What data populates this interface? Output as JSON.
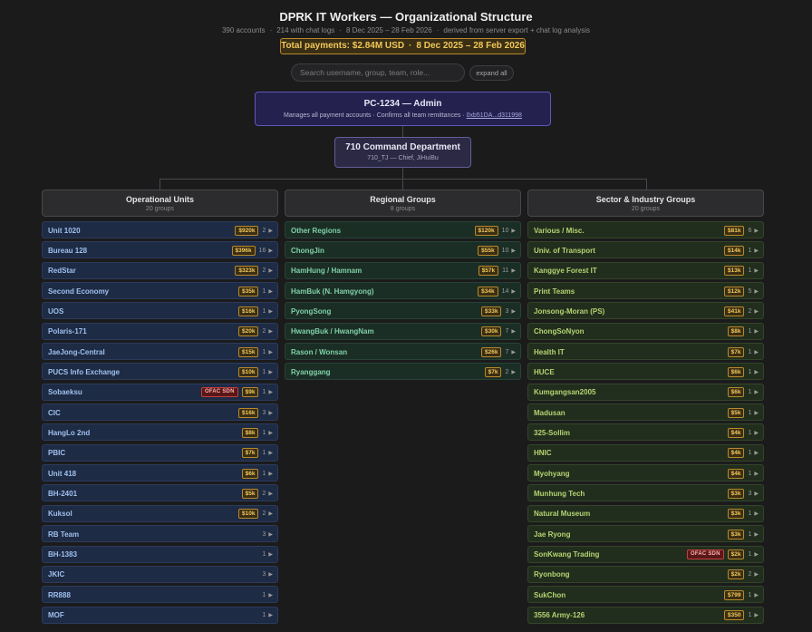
{
  "header": {
    "title": "DPRK IT Workers — Organizational Structure",
    "subtitle_accounts": "390 accounts",
    "subtitle_chatlogs": "214 with chat logs",
    "subtitle_range": "8 Dec 2025 – 28 Feb 2026",
    "subtitle_source": "derived from server export + chat log analysis",
    "total_payments": "Total payments: $2.84M USD",
    "total_range": "8 Dec 2025 – 28 Feb 2026"
  },
  "search": {
    "placeholder": "Search username, group, team, role..."
  },
  "expand_label": "expand all",
  "admin": {
    "name": "PC-1234 — Admin",
    "desc": "Manages all payment accounts · Confirms all team remittances ·",
    "address": "0xb51DA...d311998"
  },
  "dept": {
    "name": "710 Command Department",
    "desc": "710_TJ — Chief, JiHuiBu"
  },
  "colors": {
    "ops_accent": "#9fc0ee",
    "regional_accent": "#7fd0a6",
    "sector_accent": "#b3d472",
    "payment_badge": "#f2c85a",
    "ofac_badge": "#c04040"
  },
  "columns": {
    "ops": {
      "title": "Operational Units",
      "count": "20 groups",
      "items": [
        {
          "name": "Unit 1020",
          "pay": "$920k",
          "count": "2"
        },
        {
          "name": "Bureau 128",
          "pay": "$396k",
          "count": "16"
        },
        {
          "name": "RedStar",
          "pay": "$323k",
          "count": "2"
        },
        {
          "name": "Second Economy",
          "pay": "$35k",
          "count": "1"
        },
        {
          "name": "UOS",
          "pay": "$16k",
          "count": "1"
        },
        {
          "name": "Polaris-171",
          "pay": "$20k",
          "count": "2"
        },
        {
          "name": "JaeJong-Central",
          "pay": "$15k",
          "count": "1"
        },
        {
          "name": "PUCS Info Exchange",
          "pay": "$10k",
          "count": "1"
        },
        {
          "name": "Sobaeksu",
          "ofac": "OFAC SDN",
          "pay": "$9k",
          "count": "1"
        },
        {
          "name": "CIC",
          "pay": "$16k",
          "count": "3"
        },
        {
          "name": "HangLo 2nd",
          "pay": "$8k",
          "count": "1"
        },
        {
          "name": "PBIC",
          "pay": "$7k",
          "count": "1"
        },
        {
          "name": "Unit 418",
          "pay": "$6k",
          "count": "1"
        },
        {
          "name": "BH-2401",
          "pay": "$5k",
          "count": "2"
        },
        {
          "name": "Kuksol",
          "pay": "$10k",
          "count": "2"
        },
        {
          "name": "RB Team",
          "count": "3"
        },
        {
          "name": "BH-1383",
          "count": "1"
        },
        {
          "name": "JKIC",
          "count": "3"
        },
        {
          "name": "RR888",
          "count": "1"
        },
        {
          "name": "MOF",
          "count": "1"
        }
      ]
    },
    "regional": {
      "title": "Regional Groups",
      "count": "8 groups",
      "items": [
        {
          "name": "Other Regions",
          "pay": "$120k",
          "count": "10"
        },
        {
          "name": "ChongJin",
          "pay": "$55k",
          "count": "10"
        },
        {
          "name": "HamHung / Hamnam",
          "pay": "$57k",
          "count": "11"
        },
        {
          "name": "HamBuk (N. Hamgyong)",
          "pay": "$34k",
          "count": "14"
        },
        {
          "name": "PyongSong",
          "pay": "$33k",
          "count": "3"
        },
        {
          "name": "HwangBuk / HwangNam",
          "pay": "$30k",
          "count": "7"
        },
        {
          "name": "Rason / Wonsan",
          "pay": "$26k",
          "count": "7"
        },
        {
          "name": "Ryanggang",
          "pay": "$7k",
          "count": "2"
        }
      ]
    },
    "sector": {
      "title": "Sector & Industry Groups",
      "count": "20 groups",
      "items": [
        {
          "name": "Various / Misc.",
          "pay": "$81k",
          "count": "6"
        },
        {
          "name": "Univ. of Transport",
          "pay": "$14k",
          "count": "1"
        },
        {
          "name": "Kanggye Forest IT",
          "pay": "$13k",
          "count": "1"
        },
        {
          "name": "Print Teams",
          "pay": "$12k",
          "count": "5"
        },
        {
          "name": "Jonsong-Moran (PS)",
          "pay": "$41k",
          "count": "2"
        },
        {
          "name": "ChongSoNyon",
          "pay": "$8k",
          "count": "1"
        },
        {
          "name": "Health IT",
          "pay": "$7k",
          "count": "1"
        },
        {
          "name": "HUCE",
          "pay": "$6k",
          "count": "1"
        },
        {
          "name": "Kumgangsan2005",
          "pay": "$6k",
          "count": "1"
        },
        {
          "name": "Madusan",
          "pay": "$5k",
          "count": "1"
        },
        {
          "name": "325-Sollim",
          "pay": "$4k",
          "count": "1"
        },
        {
          "name": "HNIC",
          "pay": "$4k",
          "count": "1"
        },
        {
          "name": "Myohyang",
          "pay": "$4k",
          "count": "1"
        },
        {
          "name": "Munhung Tech",
          "pay": "$3k",
          "count": "3"
        },
        {
          "name": "Natural Museum",
          "pay": "$3k",
          "count": "1"
        },
        {
          "name": "Jae Ryong",
          "pay": "$3k",
          "count": "1"
        },
        {
          "name": "SonKwang Trading",
          "ofac": "OFAC SDN",
          "pay": "$2k",
          "count": "1"
        },
        {
          "name": "Ryonbong",
          "pay": "$2k",
          "count": "2"
        },
        {
          "name": "SukChon",
          "pay": "$799",
          "count": "1"
        },
        {
          "name": "3556 Army-126",
          "pay": "$350",
          "count": "1"
        }
      ]
    }
  }
}
